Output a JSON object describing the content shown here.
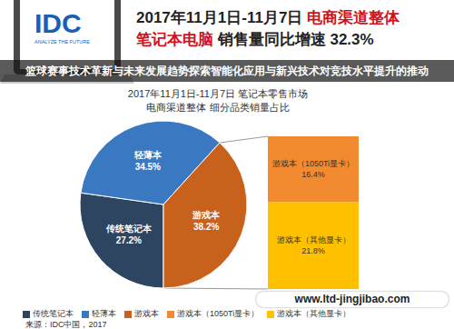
{
  "header": {
    "logo": "IDC",
    "tagline": "ANALYZE THE FUTURE",
    "title": [
      [
        {
          "text": "2017年11月1日-11月7日 ",
          "highlight": false
        },
        {
          "text": "电商渠道整体",
          "highlight": true
        }
      ],
      [
        {
          "text": "笔记本电脑",
          "highlight": true
        },
        {
          "text": " 销售量同比增速 32.3%",
          "highlight": false
        }
      ]
    ],
    "banner": "篮球赛事技术革新与未来发展趋势探索智能化应用与新兴技术对竞技水平提升的推动",
    "watermark": "www.ltd-jingjibao.com",
    "source": "来源：IDC中国，2017"
  },
  "chart_data": [
    {
      "type": "pie",
      "title": "2017年11月1日-11月7日 笔记本零售市场",
      "subtitle": "电商渠道整体 细分品类销量占比",
      "categories": [
        "传统笔记本",
        "轻薄本",
        "游戏本"
      ],
      "values": [
        27.2,
        34.5,
        38.2
      ],
      "value_labels": [
        "27.2%",
        "34.5%",
        "38.2%"
      ],
      "colors": [
        "#2d4561",
        "#3b78c2",
        "#c8611c"
      ],
      "data_labels": true
    },
    {
      "type": "bar",
      "stacked": true,
      "categories": [
        null
      ],
      "series": [
        {
          "name": "游戏本（其他显卡）",
          "color": "#ffc000",
          "values": [
            21.8
          ],
          "value_labels": [
            "21.8%"
          ]
        },
        {
          "name": "游戏本（1050Ti显卡）",
          "color": "#f28a30",
          "values": [
            16.4
          ],
          "value_labels": [
            "16.4%"
          ]
        }
      ],
      "ylim": [
        0,
        38.2
      ],
      "tick_labels": false,
      "data_labels": true
    }
  ]
}
